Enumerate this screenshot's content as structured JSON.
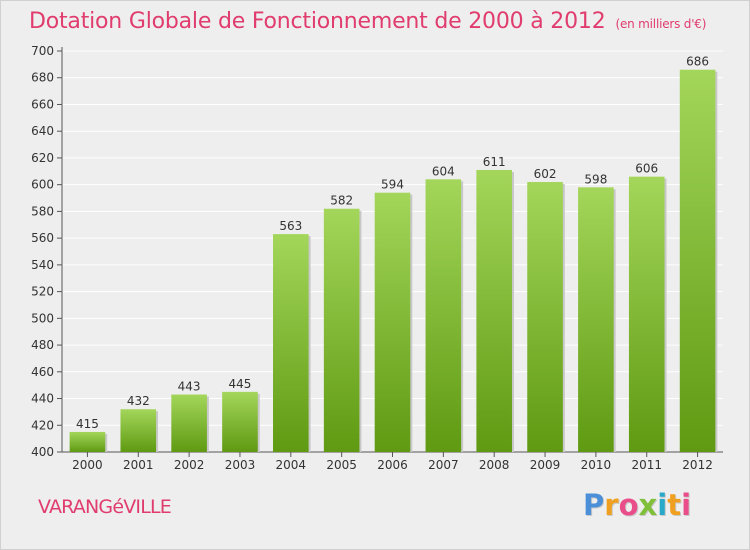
{
  "chart_data": {
    "type": "bar",
    "title": "Dotation Globale de Fonctionnement de 2000 à 2012",
    "subtitle": "(en milliers d'€)",
    "categories": [
      "2000",
      "2001",
      "2002",
      "2003",
      "2004",
      "2005",
      "2006",
      "2007",
      "2008",
      "2009",
      "2010",
      "2011",
      "2012"
    ],
    "values": [
      415,
      432,
      443,
      445,
      563,
      582,
      594,
      604,
      611,
      602,
      598,
      606,
      686
    ],
    "y_ticks": [
      400,
      420,
      440,
      460,
      480,
      500,
      520,
      540,
      560,
      580,
      600,
      620,
      640,
      660,
      680,
      700
    ],
    "ylim": [
      400,
      700
    ],
    "xlabel": "",
    "ylabel": "",
    "grid": true,
    "bar_color_top": "#a3d65a",
    "bar_color_bottom": "#5f9a12"
  },
  "footer": {
    "commune": "VARANGéVILLE",
    "logo_letters": [
      "P",
      "r",
      "o",
      "x",
      "i",
      "t",
      "i"
    ],
    "logo_colors": [
      "#4b8fd8",
      "#f0a020",
      "#e94e8a",
      "#7fbf3a",
      "#2aa8c8",
      "#f0a020",
      "#e94e8a"
    ]
  },
  "colors": {
    "accent": "#e03c6e",
    "background": "#eeeeee",
    "grid": "#ffffff"
  }
}
